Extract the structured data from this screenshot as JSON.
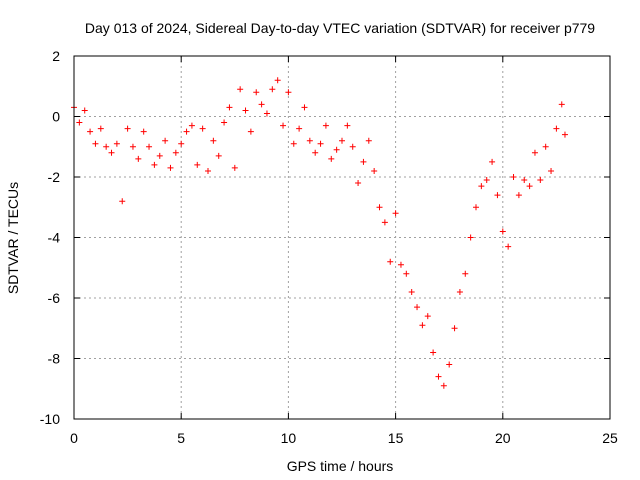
{
  "chart_data": {
    "type": "scatter",
    "title": "Day 013 of 2024, Sidereal Day-to-day VTEC variation (SDTVAR) for receiver p779",
    "xlabel": "GPS time / hours",
    "ylabel": "SDTVAR / TECUs",
    "xlim": [
      0,
      25
    ],
    "ylim": [
      -10,
      2
    ],
    "xticks": [
      0,
      5,
      10,
      15,
      20,
      25
    ],
    "yticks": [
      2,
      0,
      -2,
      -4,
      -6,
      -8,
      -10
    ],
    "xtick_labels": [
      "0",
      "5",
      "10",
      "15",
      "20",
      "25"
    ],
    "ytick_labels": [
      "2",
      "0",
      "-2",
      "-4",
      "-6",
      "-8",
      "-10"
    ],
    "grid": true,
    "marker": "+",
    "marker_color": "#ff0000",
    "series": [
      {
        "name": "SDTVAR",
        "x": [
          0.0,
          0.25,
          0.5,
          0.75,
          1.0,
          1.25,
          1.5,
          1.75,
          2.0,
          2.25,
          2.5,
          2.75,
          3.0,
          3.25,
          3.5,
          3.75,
          4.0,
          4.25,
          4.5,
          4.75,
          5.0,
          5.25,
          5.5,
          5.75,
          6.0,
          6.25,
          6.5,
          6.75,
          7.0,
          7.25,
          7.5,
          7.75,
          8.0,
          8.25,
          8.5,
          8.75,
          9.0,
          9.25,
          9.5,
          9.75,
          10.0,
          10.25,
          10.5,
          10.75,
          11.0,
          11.25,
          11.5,
          11.75,
          12.0,
          12.25,
          12.5,
          12.75,
          13.0,
          13.25,
          13.5,
          13.75,
          14.0,
          14.25,
          14.5,
          14.75,
          15.0,
          15.25,
          15.5,
          15.75,
          16.0,
          16.25,
          16.5,
          16.75,
          17.0,
          17.25,
          17.5,
          17.75,
          18.0,
          18.25,
          18.5,
          18.75,
          19.0,
          19.25,
          19.5,
          19.75,
          20.0,
          20.25,
          20.5,
          20.75,
          21.0,
          21.25,
          21.5,
          21.75,
          22.0,
          22.25,
          22.5,
          22.75,
          22.9
        ],
        "y": [
          0.3,
          -0.2,
          0.2,
          -0.5,
          -0.9,
          -0.4,
          -1.0,
          -1.2,
          -0.9,
          -2.8,
          -0.4,
          -1.0,
          -1.4,
          -0.5,
          -1.0,
          -1.6,
          -1.3,
          -0.8,
          -1.7,
          -1.2,
          -0.9,
          -0.5,
          -0.3,
          -1.6,
          -0.4,
          -1.8,
          -0.8,
          -1.3,
          -0.2,
          0.3,
          -1.7,
          0.9,
          0.2,
          -0.5,
          0.8,
          0.4,
          0.1,
          0.9,
          1.2,
          -0.3,
          0.8,
          -0.9,
          -0.4,
          0.3,
          -0.8,
          -1.2,
          -0.9,
          -0.3,
          -1.4,
          -1.1,
          -0.8,
          -0.3,
          -1.0,
          -2.2,
          -1.5,
          -0.8,
          -1.8,
          -3.0,
          -3.5,
          -4.8,
          -3.2,
          -4.9,
          -5.2,
          -5.8,
          -6.3,
          -6.9,
          -6.6,
          -7.8,
          -8.6,
          -8.9,
          -8.2,
          -7.0,
          -5.8,
          -5.2,
          -4.0,
          -3.0,
          -2.3,
          -2.1,
          -1.5,
          -2.6,
          -3.8,
          -4.3,
          -2.0,
          -2.6,
          -2.1,
          -2.3,
          -1.2,
          -2.1,
          -1.0,
          -1.8,
          -0.4,
          0.4,
          -0.6
        ]
      }
    ]
  }
}
